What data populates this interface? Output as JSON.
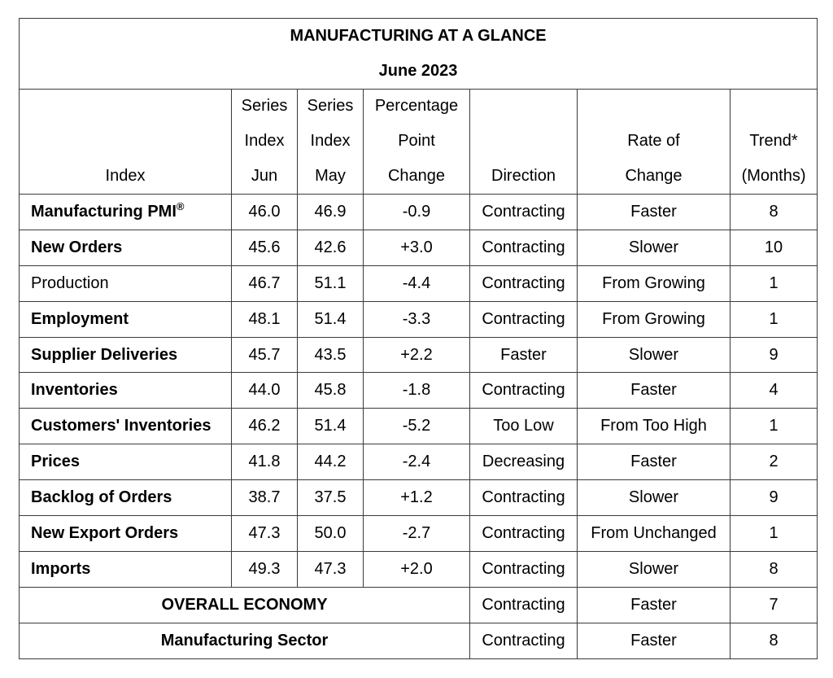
{
  "title": "MANUFACTURING AT A GLANCE",
  "subtitle": "June 2023",
  "headers": {
    "index": "Index",
    "series_jun": [
      "Series",
      "Index",
      "Jun"
    ],
    "series_may": [
      "Series",
      "Index",
      "May"
    ],
    "pct_change": [
      "Percentage",
      "Point",
      "Change"
    ],
    "direction": "Direction",
    "rate": [
      "Rate of",
      "Change"
    ],
    "trend": [
      "Trend*",
      "(Months)"
    ]
  },
  "rows": [
    {
      "index": "Manufacturing PMI",
      "sup": "®",
      "bold": true,
      "jun": "46.0",
      "may": "46.9",
      "change": "-0.9",
      "direction": "Contracting",
      "rate": "Faster",
      "trend": "8"
    },
    {
      "index": "New Orders",
      "bold": true,
      "jun": "45.6",
      "may": "42.6",
      "change": "+3.0",
      "direction": "Contracting",
      "rate": "Slower",
      "trend": "10"
    },
    {
      "index": "Production",
      "bold": false,
      "jun": "46.7",
      "may": "51.1",
      "change": "-4.4",
      "direction": "Contracting",
      "rate": "From Growing",
      "trend": "1"
    },
    {
      "index": "Employment",
      "bold": true,
      "jun": "48.1",
      "may": "51.4",
      "change": "-3.3",
      "direction": "Contracting",
      "rate": "From Growing",
      "trend": "1"
    },
    {
      "index": "Supplier Deliveries",
      "bold": true,
      "jun": "45.7",
      "may": "43.5",
      "change": "+2.2",
      "direction": "Faster",
      "rate": "Slower",
      "trend": "9"
    },
    {
      "index": "Inventories",
      "bold": true,
      "jun": "44.0",
      "may": "45.8",
      "change": "-1.8",
      "direction": "Contracting",
      "rate": "Faster",
      "trend": "4"
    },
    {
      "index": "Customers' Inventories",
      "bold": true,
      "jun": "46.2",
      "may": "51.4",
      "change": "-5.2",
      "direction": "Too Low",
      "rate": "From Too High",
      "trend": "1"
    },
    {
      "index": "Prices",
      "bold": true,
      "jun": "41.8",
      "may": "44.2",
      "change": "-2.4",
      "direction": "Decreasing",
      "rate": "Faster",
      "trend": "2"
    },
    {
      "index": "Backlog of Orders",
      "bold": true,
      "jun": "38.7",
      "may": "37.5",
      "change": "+1.2",
      "direction": "Contracting",
      "rate": "Slower",
      "trend": "9"
    },
    {
      "index": "New Export Orders",
      "bold": true,
      "jun": "47.3",
      "may": "50.0",
      "change": "-2.7",
      "direction": "Contracting",
      "rate": "From Unchanged",
      "trend": "1"
    },
    {
      "index": "Imports",
      "bold": true,
      "jun": "49.3",
      "may": "47.3",
      "change": "+2.0",
      "direction": "Contracting",
      "rate": "Slower",
      "trend": "8"
    }
  ],
  "summary": [
    {
      "label": "OVERALL ECONOMY",
      "direction": "Contracting",
      "rate": "Faster",
      "trend": "7"
    },
    {
      "label": "Manufacturing Sector",
      "direction": "Contracting",
      "rate": "Faster",
      "trend": "8"
    }
  ]
}
